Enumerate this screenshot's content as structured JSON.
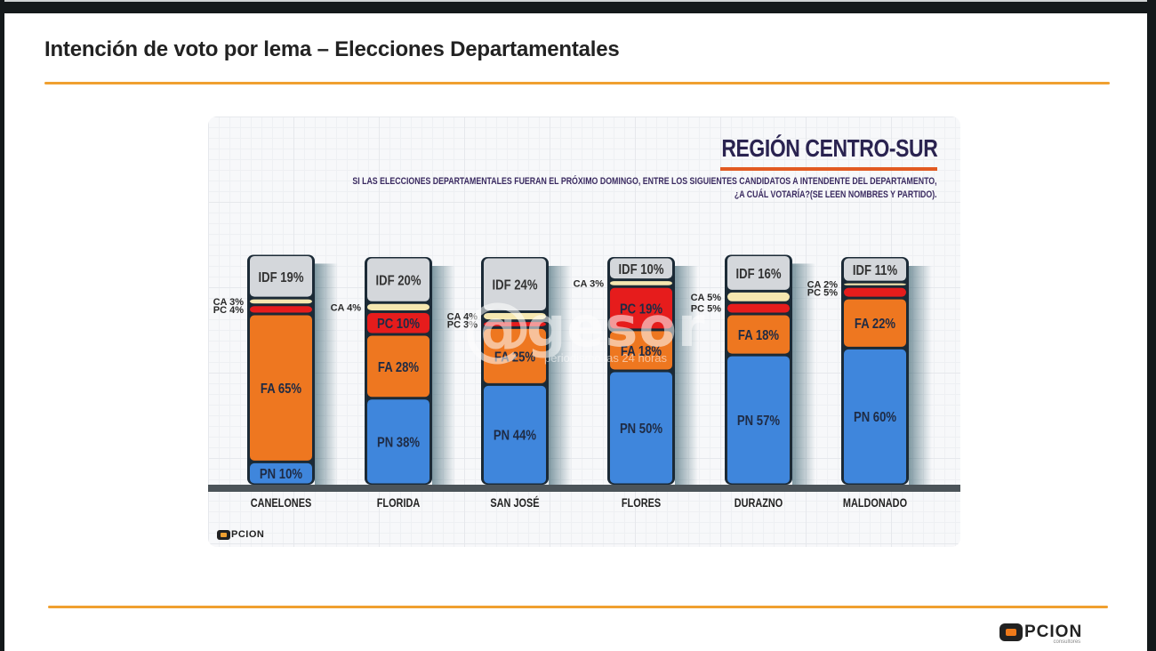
{
  "slide": {
    "title": "Intención de voto por lema – Elecciones Departamentales",
    "brand": {
      "name": "PCION",
      "subtitle": "consultores"
    },
    "accent_color": "#f0a030"
  },
  "watermark": {
    "symbol": "@",
    "word": "gesor",
    "tagline": "periodismo las 24 horas"
  },
  "chart_data": {
    "type": "bar",
    "stacked": true,
    "title": "REGIÓN CENTRO-SUR",
    "subtitle": "SI LAS ELECCIONES DEPARTAMENTALES FUERAN EL PRÓXIMO DOMINGO, ENTRE LOS SIGUIENTES CANDIDATOS A INTENDENTE DEL DEPARTAMENTO,",
    "subtitle_line2": "¿A CUÁL VOTARÍA?(SE LEEN NOMBRES Y PARTIDO).",
    "xlabel": "",
    "ylabel": "",
    "ylim": [
      0,
      100
    ],
    "unit": "%",
    "grid": true,
    "categories": [
      "CANELONES",
      "FLORIDA",
      "SAN JOSÉ",
      "FLORES",
      "DURAZNO",
      "MALDONADO"
    ],
    "series": [
      {
        "name": "PN",
        "color": "#3f86dc",
        "values": [
          10,
          38,
          44,
          50,
          57,
          60
        ]
      },
      {
        "name": "FA",
        "color": "#ee7720",
        "values": [
          65,
          28,
          25,
          18,
          18,
          22
        ]
      },
      {
        "name": "PC",
        "color": "#e61c1c",
        "values": [
          4,
          10,
          3,
          19,
          5,
          5
        ]
      },
      {
        "name": "CA",
        "color": "#f5e7b0",
        "values": [
          3,
          4,
          4,
          3,
          5,
          2
        ]
      },
      {
        "name": "IDF",
        "color": "#d4d7db",
        "values": [
          19,
          20,
          24,
          10,
          16,
          11
        ]
      }
    ],
    "logo": "PCION"
  }
}
